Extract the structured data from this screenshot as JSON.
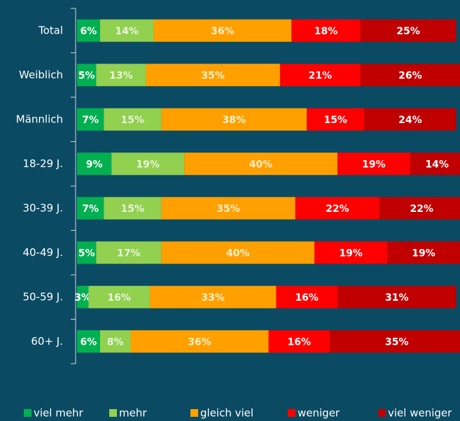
{
  "chart_data": {
    "type": "bar",
    "orientation": "horizontal",
    "stacked": true,
    "categories": [
      "Total",
      "Weiblich",
      "Männlich",
      "18-29 J.",
      "30-39 J.",
      "40-49 J.",
      "50-59 J.",
      "60+ J."
    ],
    "series": [
      {
        "name": "viel mehr",
        "color": "#00b050",
        "values": [
          6,
          5,
          7,
          9,
          7,
          5,
          3,
          6
        ],
        "value_labels": [
          "6%",
          "5%",
          "7%",
          "9%",
          "7%",
          "5%",
          "3%",
          "6%"
        ]
      },
      {
        "name": "mehr",
        "color": "#92d050",
        "values": [
          14,
          13,
          15,
          19,
          15,
          17,
          16,
          8
        ],
        "value_labels": [
          "14%",
          "13%",
          "15%",
          "19%",
          "15%",
          "17%",
          "16%",
          "8%"
        ]
      },
      {
        "name": "gleich viel",
        "color": "#ffa000",
        "values": [
          36,
          35,
          38,
          40,
          35,
          40,
          33,
          36
        ],
        "value_labels": [
          "36%",
          "35%",
          "38%",
          "40%",
          "35%",
          "40%",
          "33%",
          "36%"
        ]
      },
      {
        "name": "weniger",
        "color": "#ff0000",
        "values": [
          18,
          21,
          15,
          19,
          22,
          19,
          16,
          16
        ],
        "value_labels": [
          "18%",
          "21%",
          "15%",
          "19%",
          "22%",
          "19%",
          "16%",
          "16%"
        ]
      },
      {
        "name": "viel weniger",
        "color": "#c00000",
        "values": [
          25,
          26,
          24,
          14,
          22,
          19,
          31,
          35
        ],
        "value_labels": [
          "25%",
          "26%",
          "24%",
          "14%",
          "22%",
          "19%",
          "31%",
          "35%"
        ]
      }
    ],
    "xlim": [
      0,
      100
    ]
  }
}
